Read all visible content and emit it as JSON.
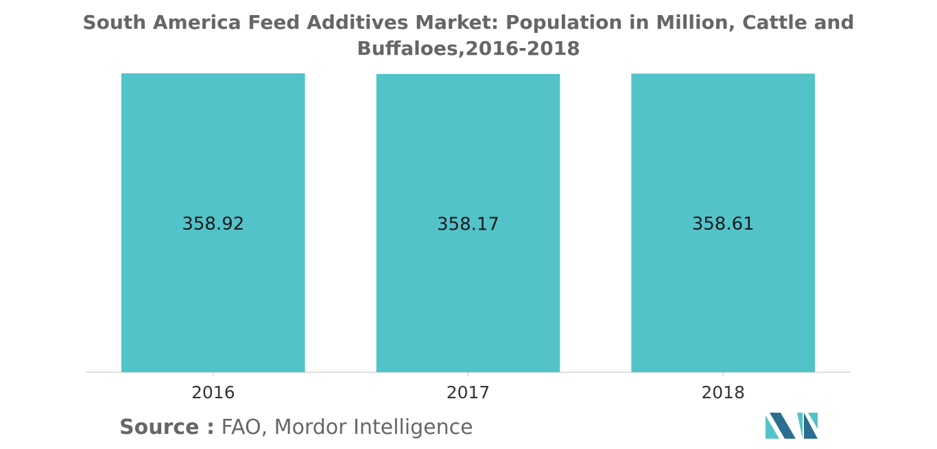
{
  "chart_data": {
    "type": "bar",
    "title": "South America Feed Additives Market: Population in Million, Cattle and Buffaloes,2016-2018",
    "categories": [
      "2016",
      "2017",
      "2018"
    ],
    "values": [
      358.92,
      358.17,
      358.61
    ],
    "data_labels": [
      "358.92",
      "358.17",
      "358.61"
    ],
    "xlabel": "",
    "ylabel": "",
    "grid": false,
    "legend": "none",
    "bar_color": "#52C3C9"
  },
  "source": {
    "label": "Source :",
    "text": "FAO, Mordor Intelligence"
  },
  "colors": {
    "title": "#666666",
    "axis": "#bfbfbf",
    "tick_text": "#333333",
    "logo_light": "#52C3C9",
    "logo_dark": "#2a6f8f"
  }
}
